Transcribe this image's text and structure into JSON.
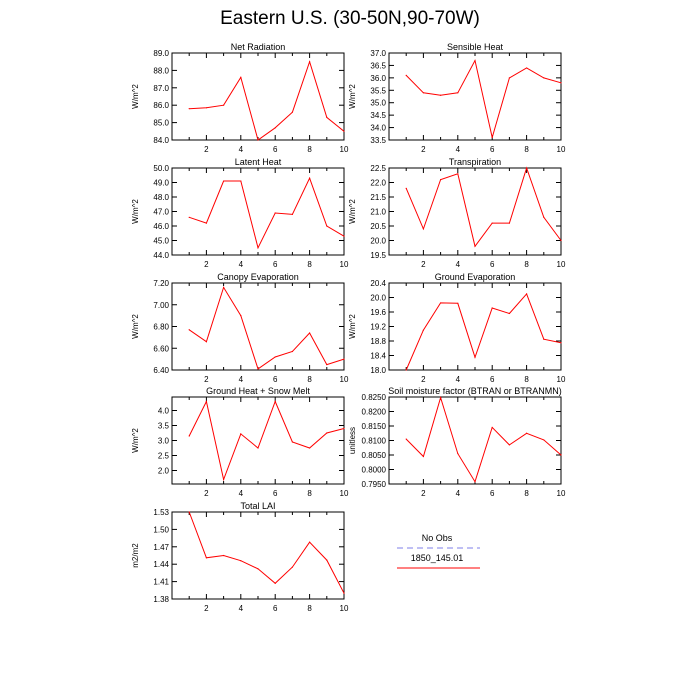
{
  "figure_title": "Eastern U.S. (30-50N,90-70W)",
  "colors": {
    "model": "#ff0000",
    "obs": "#9999ee",
    "axis": "#000000"
  },
  "legend": {
    "obs_label": "No Obs",
    "model_label": "1850_145.01"
  },
  "chart_data": [
    {
      "type": "line",
      "title": "Net Radiation",
      "ylabel": "W/m^2",
      "x": [
        1,
        2,
        3,
        4,
        5,
        6,
        7,
        8,
        9,
        10
      ],
      "xlim": [
        0,
        10
      ],
      "xticks": [
        2,
        4,
        6,
        8,
        10
      ],
      "ylim": [
        84.0,
        89.0
      ],
      "yticks": [
        "84.0",
        "85.0",
        "86.0",
        "87.0",
        "88.0",
        "89.0"
      ],
      "series": [
        {
          "values": [
            85.8,
            85.85,
            86.0,
            87.6,
            84.0,
            84.7,
            85.6,
            88.5,
            85.3,
            84.5
          ]
        }
      ]
    },
    {
      "type": "line",
      "title": "Sensible Heat",
      "ylabel": "W/m^2",
      "x": [
        1,
        2,
        3,
        4,
        5,
        6,
        7,
        8,
        9,
        10
      ],
      "xlim": [
        0,
        10
      ],
      "xticks": [
        2,
        4,
        6,
        8,
        10
      ],
      "ylim": [
        33.5,
        37.0
      ],
      "yticks": [
        "33.5",
        "34.0",
        "34.5",
        "35.0",
        "35.5",
        "36.0",
        "36.5",
        "37.0"
      ],
      "series": [
        {
          "values": [
            36.1,
            35.4,
            35.3,
            35.4,
            36.7,
            33.6,
            36.0,
            36.4,
            36.0,
            35.8
          ]
        }
      ]
    },
    {
      "type": "line",
      "title": "Latent Heat",
      "ylabel": "W/m^2",
      "x": [
        1,
        2,
        3,
        4,
        5,
        6,
        7,
        8,
        9,
        10
      ],
      "xlim": [
        0,
        10
      ],
      "xticks": [
        2,
        4,
        6,
        8,
        10
      ],
      "ylim": [
        44.0,
        50.0
      ],
      "yticks": [
        "44.0",
        "45.0",
        "46.0",
        "47.0",
        "48.0",
        "49.0",
        "50.0"
      ],
      "series": [
        {
          "values": [
            46.6,
            46.2,
            49.1,
            49.1,
            44.5,
            46.9,
            46.8,
            49.3,
            46.0,
            45.3
          ]
        }
      ]
    },
    {
      "type": "line",
      "title": "Transpiration",
      "ylabel": "W/m^2",
      "x": [
        1,
        2,
        3,
        4,
        5,
        6,
        7,
        8,
        9,
        10
      ],
      "xlim": [
        0,
        10
      ],
      "xticks": [
        2,
        4,
        6,
        8,
        10
      ],
      "ylim": [
        19.5,
        22.5
      ],
      "yticks": [
        "19.5",
        "20.0",
        "20.5",
        "21.0",
        "21.5",
        "22.0",
        "22.5"
      ],
      "series": [
        {
          "values": [
            21.8,
            20.4,
            22.1,
            22.3,
            19.8,
            20.6,
            20.6,
            22.5,
            20.8,
            20.0
          ]
        }
      ]
    },
    {
      "type": "line",
      "title": "Canopy Evaporation",
      "ylabel": "W/m^2",
      "x": [
        1,
        2,
        3,
        4,
        5,
        6,
        7,
        8,
        9,
        10
      ],
      "xlim": [
        0,
        10
      ],
      "xticks": [
        2,
        4,
        6,
        8,
        10
      ],
      "ylim": [
        6.4,
        7.2
      ],
      "yticks": [
        "6.40",
        "6.60",
        "6.80",
        "7.00",
        "7.20"
      ],
      "series": [
        {
          "values": [
            6.77,
            6.66,
            7.16,
            6.9,
            6.41,
            6.52,
            6.57,
            6.74,
            6.45,
            6.5
          ]
        }
      ]
    },
    {
      "type": "line",
      "title": "Ground Evaporation",
      "ylabel": "W/m^2",
      "x": [
        1,
        2,
        3,
        4,
        5,
        6,
        7,
        8,
        9,
        10
      ],
      "xlim": [
        0,
        10
      ],
      "xticks": [
        2,
        4,
        6,
        8,
        10
      ],
      "ylim": [
        18.0,
        20.4
      ],
      "yticks": [
        "18.0",
        "18.4",
        "18.8",
        "19.2",
        "19.6",
        "20.0",
        "20.4"
      ],
      "series": [
        {
          "values": [
            18.0,
            19.1,
            19.85,
            19.84,
            18.35,
            19.71,
            19.56,
            20.1,
            18.85,
            18.75
          ]
        }
      ]
    },
    {
      "type": "line",
      "title": "Ground Heat + Snow Melt",
      "ylabel": "W/m^2",
      "x": [
        1,
        2,
        3,
        4,
        5,
        6,
        7,
        8,
        9,
        10
      ],
      "xlim": [
        0,
        10
      ],
      "xticks": [
        2,
        4,
        6,
        8,
        10
      ],
      "ylim": [
        1.55,
        4.45
      ],
      "yticks": [
        "2.0",
        "2.5",
        "3.0",
        "3.5",
        "4.0"
      ],
      "series": [
        {
          "values": [
            3.15,
            4.3,
            1.7,
            3.22,
            2.75,
            4.3,
            2.95,
            2.75,
            3.25,
            3.4
          ]
        }
      ]
    },
    {
      "type": "line",
      "title": "Soil moisture factor (BTRAN or BTRANMN)",
      "ylabel": "unitless",
      "x": [
        1,
        2,
        3,
        4,
        5,
        6,
        7,
        8,
        9,
        10
      ],
      "xlim": [
        0,
        10
      ],
      "xticks": [
        2,
        4,
        6,
        8,
        10
      ],
      "ylim": [
        0.795,
        0.825
      ],
      "yticks": [
        "0.7950",
        "0.8000",
        "0.8050",
        "0.8100",
        "0.8150",
        "0.8200",
        "0.8250"
      ],
      "series": [
        {
          "values": [
            0.8105,
            0.8045,
            0.8248,
            0.8055,
            0.7958,
            0.8145,
            0.8085,
            0.8125,
            0.8102,
            0.805
          ]
        }
      ]
    },
    {
      "type": "line",
      "title": "Total LAI",
      "ylabel": "m2/m2",
      "x": [
        1,
        2,
        3,
        4,
        5,
        6,
        7,
        8,
        9,
        10
      ],
      "xlim": [
        0,
        10
      ],
      "xticks": [
        2,
        4,
        6,
        8,
        10
      ],
      "ylim": [
        1.38,
        1.53
      ],
      "yticks": [
        "1.38",
        "1.41",
        "1.44",
        "1.47",
        "1.50",
        "1.53"
      ],
      "series": [
        {
          "values": [
            1.53,
            1.451,
            1.455,
            1.446,
            1.432,
            1.407,
            1.435,
            1.478,
            1.447,
            1.39
          ]
        }
      ]
    }
  ]
}
